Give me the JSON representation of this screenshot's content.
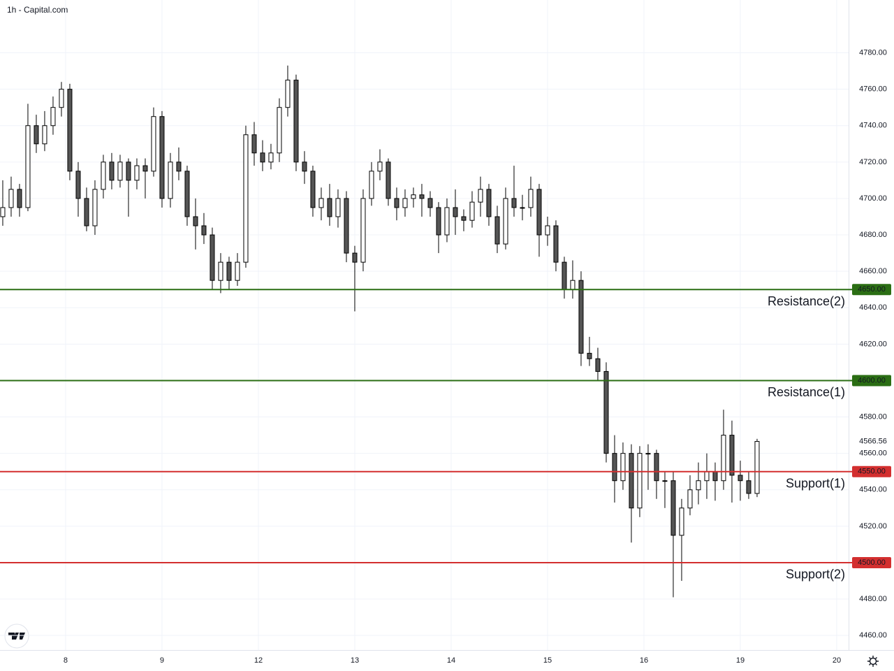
{
  "chart_data": {
    "type": "candlestick",
    "title": "1h - Capital.com",
    "ohlc": [
      [
        4690,
        4710,
        4685,
        4695
      ],
      [
        4695,
        4712,
        4690,
        4705
      ],
      [
        4705,
        4708,
        4690,
        4695
      ],
      [
        4695,
        4752,
        4693,
        4740
      ],
      [
        4740,
        4746,
        4725,
        4730
      ],
      [
        4730,
        4748,
        4726,
        4740
      ],
      [
        4740,
        4756,
        4735,
        4750
      ],
      [
        4750,
        4764,
        4745,
        4760
      ],
      [
        4760,
        4763,
        4710,
        4715
      ],
      [
        4715,
        4720,
        4690,
        4700
      ],
      [
        4700,
        4706,
        4682,
        4685
      ],
      [
        4685,
        4710,
        4680,
        4705
      ],
      [
        4705,
        4724,
        4700,
        4720
      ],
      [
        4720,
        4725,
        4705,
        4710
      ],
      [
        4710,
        4724,
        4706,
        4720
      ],
      [
        4720,
        4722,
        4690,
        4710
      ],
      [
        4710,
        4722,
        4705,
        4718
      ],
      [
        4718,
        4722,
        4700,
        4715
      ],
      [
        4715,
        4750,
        4712,
        4745
      ],
      [
        4745,
        4748,
        4695,
        4700
      ],
      [
        4700,
        4725,
        4695,
        4720
      ],
      [
        4720,
        4728,
        4710,
        4715
      ],
      [
        4715,
        4718,
        4685,
        4690
      ],
      [
        4690,
        4700,
        4672,
        4685
      ],
      [
        4685,
        4692,
        4675,
        4680
      ],
      [
        4680,
        4684,
        4650,
        4655
      ],
      [
        4655,
        4670,
        4648,
        4665
      ],
      [
        4665,
        4668,
        4650,
        4655
      ],
      [
        4655,
        4670,
        4652,
        4665
      ],
      [
        4665,
        4740,
        4662,
        4735
      ],
      [
        4735,
        4742,
        4718,
        4725
      ],
      [
        4725,
        4732,
        4715,
        4720
      ],
      [
        4720,
        4730,
        4716,
        4725
      ],
      [
        4725,
        4755,
        4720,
        4750
      ],
      [
        4750,
        4773,
        4745,
        4765
      ],
      [
        4765,
        4768,
        4715,
        4720
      ],
      [
        4720,
        4726,
        4708,
        4715
      ],
      [
        4715,
        4718,
        4690,
        4695
      ],
      [
        4695,
        4706,
        4688,
        4700
      ],
      [
        4700,
        4708,
        4685,
        4690
      ],
      [
        4690,
        4705,
        4684,
        4700
      ],
      [
        4700,
        4704,
        4665,
        4670
      ],
      [
        4670,
        4674,
        4638,
        4665
      ],
      [
        4665,
        4705,
        4660,
        4700
      ],
      [
        4700,
        4720,
        4696,
        4715
      ],
      [
        4715,
        4727,
        4710,
        4720
      ],
      [
        4720,
        4722,
        4696,
        4700
      ],
      [
        4700,
        4706,
        4688,
        4695
      ],
      [
        4695,
        4705,
        4690,
        4700
      ],
      [
        4700,
        4706,
        4695,
        4702
      ],
      [
        4702,
        4708,
        4690,
        4700
      ],
      [
        4700,
        4704,
        4690,
        4695
      ],
      [
        4695,
        4698,
        4670,
        4680
      ],
      [
        4680,
        4700,
        4676,
        4695
      ],
      [
        4695,
        4705,
        4680,
        4690
      ],
      [
        4690,
        4694,
        4682,
        4688
      ],
      [
        4688,
        4704,
        4684,
        4698
      ],
      [
        4698,
        4712,
        4690,
        4705
      ],
      [
        4705,
        4708,
        4685,
        4690
      ],
      [
        4690,
        4696,
        4670,
        4675
      ],
      [
        4675,
        4706,
        4672,
        4700
      ],
      [
        4700,
        4718,
        4690,
        4695
      ],
      [
        4695,
        4702,
        4688,
        4695
      ],
      [
        4695,
        4712,
        4690,
        4705
      ],
      [
        4705,
        4708,
        4668,
        4680
      ],
      [
        4680,
        4690,
        4674,
        4685
      ],
      [
        4685,
        4688,
        4660,
        4665
      ],
      [
        4665,
        4668,
        4645,
        4650
      ],
      [
        4650,
        4666,
        4645,
        4655
      ],
      [
        4655,
        4660,
        4608,
        4615
      ],
      [
        4615,
        4624,
        4608,
        4612
      ],
      [
        4612,
        4618,
        4600,
        4605
      ],
      [
        4605,
        4610,
        4555,
        4560
      ],
      [
        4560,
        4570,
        4533,
        4545
      ],
      [
        4545,
        4566,
        4540,
        4560
      ],
      [
        4560,
        4565,
        4511,
        4530
      ],
      [
        4530,
        4564,
        4525,
        4560
      ],
      [
        4560,
        4565,
        4540,
        4560
      ],
      [
        4560,
        4562,
        4535,
        4545
      ],
      [
        4545,
        4550,
        4530,
        4545
      ],
      [
        4545,
        4550,
        4481,
        4515
      ],
      [
        4515,
        4535,
        4490,
        4530
      ],
      [
        4530,
        4548,
        4526,
        4540
      ],
      [
        4540,
        4555,
        4532,
        4545
      ],
      [
        4545,
        4560,
        4535,
        4550
      ],
      [
        4550,
        4555,
        4534,
        4545
      ],
      [
        4545,
        4584,
        4540,
        4570
      ],
      [
        4570,
        4578,
        4533,
        4548
      ],
      [
        4548,
        4556,
        4534,
        4545
      ],
      [
        4545,
        4550,
        4535,
        4538
      ],
      [
        4538,
        4568,
        4536,
        4566.56
      ]
    ],
    "up_color": "#ffffff",
    "down_color": "#555555",
    "wick_color": "#000000",
    "xlim": [
      -0.33,
      100.92
    ],
    "xticks": [
      {
        "value": 7.5,
        "label": "8"
      },
      {
        "value": 19,
        "label": "9"
      },
      {
        "value": 30.5,
        "label": "12"
      },
      {
        "value": 42,
        "label": "13"
      },
      {
        "value": 53.5,
        "label": "14"
      },
      {
        "value": 65,
        "label": "15"
      },
      {
        "value": 76.5,
        "label": "16"
      },
      {
        "value": 88,
        "label": "19"
      },
      {
        "value": 99.5,
        "label": "20"
      }
    ],
    "ylim": [
      4452,
      4809
    ],
    "yticks": [
      {
        "value": 4460,
        "label": "4460.00"
      },
      {
        "value": 4480,
        "label": "4480.00"
      },
      {
        "value": 4500,
        "label": "4500.00"
      },
      {
        "value": 4520,
        "label": "4520.00"
      },
      {
        "value": 4540,
        "label": "4540.00"
      },
      {
        "value": 4560,
        "label": "4560.00"
      },
      {
        "value": 4580,
        "label": "4580.00"
      },
      {
        "value": 4600,
        "label": "4600.00"
      },
      {
        "value": 4620,
        "label": "4620.00"
      },
      {
        "value": 4640,
        "label": "4640.00"
      },
      {
        "value": 4660,
        "label": "4660.00"
      },
      {
        "value": 4680,
        "label": "4680.00"
      },
      {
        "value": 4700,
        "label": "4700.00"
      },
      {
        "value": 4720,
        "label": "4720.00"
      },
      {
        "value": 4740,
        "label": "4740.00"
      },
      {
        "value": 4760,
        "label": "4760.00"
      },
      {
        "value": 4780,
        "label": "4780.00"
      }
    ],
    "grid": true,
    "levels": [
      {
        "name": "Resistance(2)",
        "value": 4650,
        "label": "4650.00",
        "color": "#2b6e14"
      },
      {
        "name": "Resistance(1)",
        "value": 4600,
        "label": "4600.00",
        "color": "#2b6e14"
      },
      {
        "name": "Support(1)",
        "value": 4550,
        "label": "4550.00",
        "color": "#d32f2f"
      },
      {
        "name": "Support(2)",
        "value": 4500,
        "label": "4500.00",
        "color": "#d32f2f"
      }
    ]
  }
}
